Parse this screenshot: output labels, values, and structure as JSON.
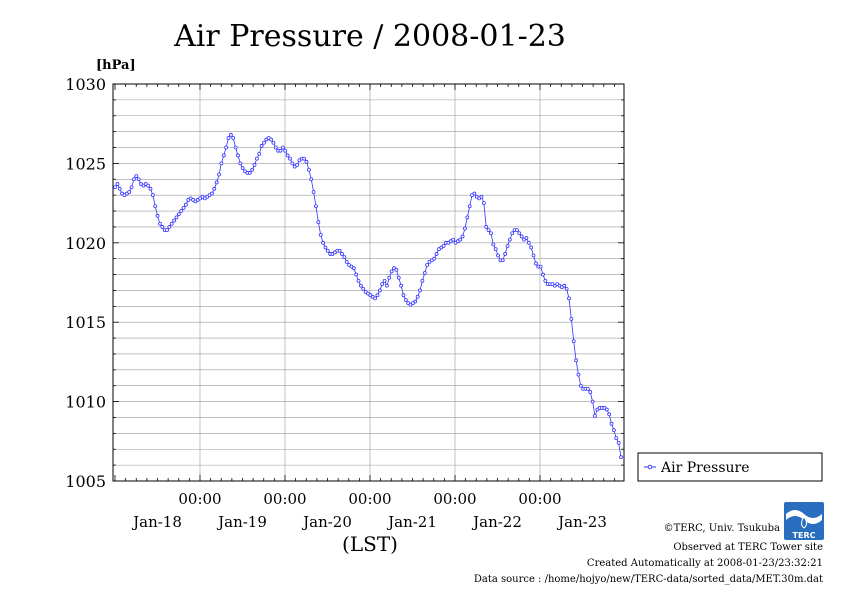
{
  "chart_data": {
    "type": "line",
    "title": "Air Pressure / 2008-01-23",
    "ylabel": "[hPa]",
    "xlabel": "(LST)",
    "ylim": [
      1005,
      1030
    ],
    "yticks": [
      "1030",
      "1025",
      "1020",
      "1015",
      "1010",
      "1005"
    ],
    "xticks_time": [
      "00:00",
      "00:00",
      "00:00",
      "00:00",
      "00:00"
    ],
    "xticks_date": [
      "Jan-18",
      "Jan-19",
      "Jan-20",
      "Jan-21",
      "Jan-22",
      "Jan-23"
    ],
    "grid": true,
    "legend_position": "right",
    "series": [
      {
        "name": "Air Pressure",
        "color": "#3333ff",
        "x_step_hours": 0.5,
        "values": [
          1023.5,
          1023.7,
          1023.4,
          1023.1,
          1023.0,
          1023.1,
          1023.2,
          1023.5,
          1024.0,
          1024.2,
          1024.0,
          1023.7,
          1023.6,
          1023.7,
          1023.6,
          1023.4,
          1023.0,
          1022.3,
          1021.7,
          1021.2,
          1021.0,
          1020.8,
          1020.8,
          1021.0,
          1021.2,
          1021.4,
          1021.6,
          1021.8,
          1022.0,
          1022.2,
          1022.4,
          1022.7,
          1022.8,
          1022.7,
          1022.6,
          1022.7,
          1022.8,
          1022.9,
          1022.8,
          1022.9,
          1023.0,
          1023.1,
          1023.4,
          1023.8,
          1024.3,
          1025.0,
          1025.5,
          1026.0,
          1026.6,
          1026.8,
          1026.6,
          1026.0,
          1025.5,
          1025.0,
          1024.7,
          1024.5,
          1024.4,
          1024.4,
          1024.6,
          1024.9,
          1025.3,
          1025.6,
          1026.1,
          1026.3,
          1026.5,
          1026.6,
          1026.5,
          1026.3,
          1026.0,
          1025.8,
          1025.8,
          1026.0,
          1025.8,
          1025.5,
          1025.3,
          1025.0,
          1024.8,
          1024.9,
          1025.2,
          1025.3,
          1025.3,
          1025.1,
          1024.6,
          1024.0,
          1023.2,
          1022.3,
          1021.3,
          1020.5,
          1020.0,
          1019.7,
          1019.5,
          1019.3,
          1019.3,
          1019.4,
          1019.5,
          1019.5,
          1019.3,
          1019.1,
          1018.8,
          1018.6,
          1018.5,
          1018.4,
          1018.0,
          1017.6,
          1017.3,
          1017.1,
          1016.9,
          1016.8,
          1016.7,
          1016.6,
          1016.5,
          1016.7,
          1017.0,
          1017.4,
          1017.6,
          1017.3,
          1017.8,
          1018.2,
          1018.4,
          1018.3,
          1017.8,
          1017.3,
          1016.7,
          1016.4,
          1016.2,
          1016.1,
          1016.2,
          1016.3,
          1016.6,
          1017.0,
          1017.6,
          1018.1,
          1018.6,
          1018.8,
          1018.9,
          1019.0,
          1019.3,
          1019.6,
          1019.7,
          1019.8,
          1020.0,
          1020.0,
          1020.1,
          1020.2,
          1020.0,
          1020.1,
          1020.2,
          1020.4,
          1020.9,
          1021.6,
          1022.3,
          1023.0,
          1023.1,
          1022.9,
          1022.8,
          1022.9,
          1022.5,
          1021.0,
          1020.8,
          1020.6,
          1019.9,
          1019.6,
          1019.2,
          1018.9,
          1018.9,
          1019.3,
          1019.8,
          1020.2,
          1020.6,
          1020.8,
          1020.8,
          1020.6,
          1020.4,
          1020.2,
          1020.3,
          1020.0,
          1019.7,
          1019.2,
          1018.7,
          1018.5,
          1018.5,
          1018.0,
          1017.6,
          1017.4,
          1017.4,
          1017.4,
          1017.3,
          1017.4,
          1017.3,
          1017.2,
          1017.3,
          1017.1,
          1016.5,
          1015.2,
          1013.8,
          1012.6,
          1011.7,
          1011.0,
          1010.8,
          1010.8,
          1010.8,
          1010.6,
          1010.0,
          1009.1,
          1009.5,
          1009.6,
          1009.6,
          1009.6,
          1009.5,
          1009.2,
          1008.6,
          1008.2,
          1007.7,
          1007.4,
          1006.5
        ]
      }
    ]
  },
  "credits": {
    "copyright": "©TERC, Univ. Tsukuba",
    "observed": "Observed at TERC Tower site",
    "created": "Created Automatically at 2008-01-23/23:32:21",
    "source": "Data source : /home/hojyo/new/TERC-data/sorted_data/MET.30m.dat",
    "logo_text": "TERC"
  }
}
